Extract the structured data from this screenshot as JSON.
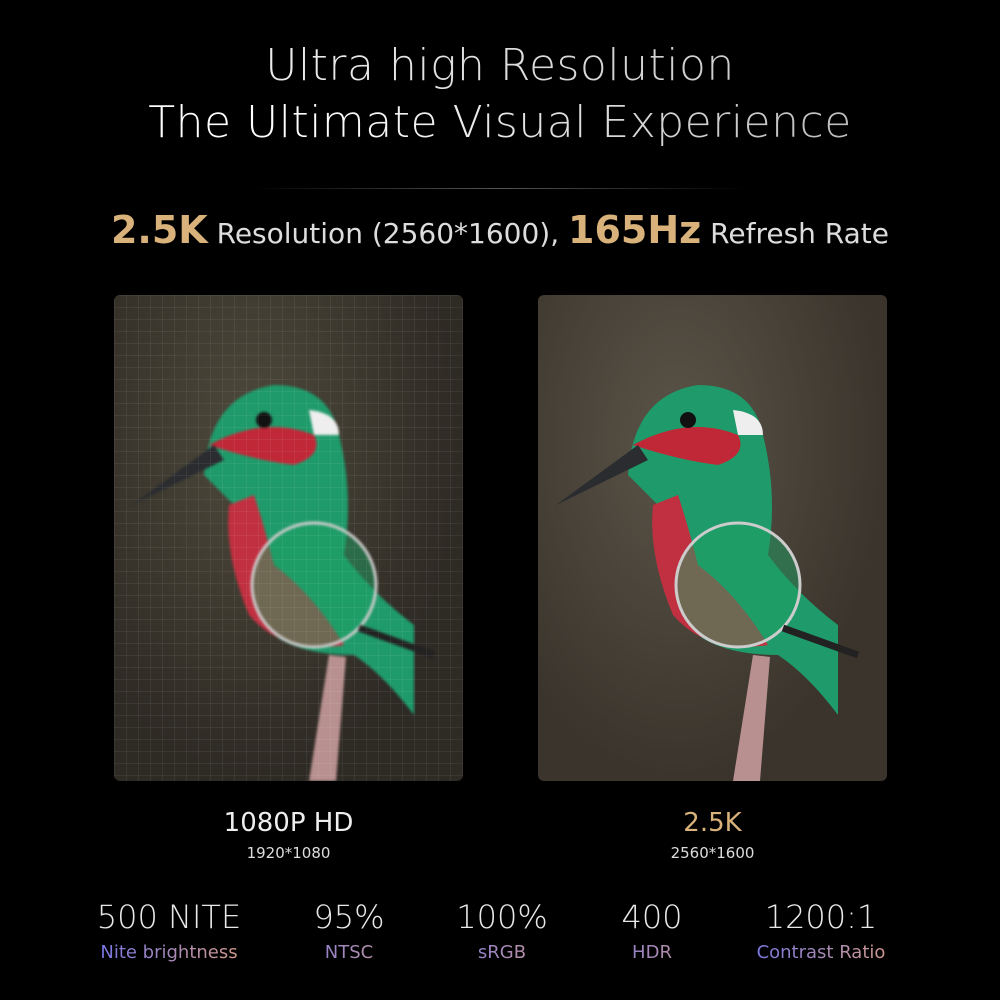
{
  "header": {
    "line1": "Ultra high Resolution",
    "line2": "The Ultimate Visual Experience"
  },
  "subtitle": {
    "highlight1": "2.5K",
    "text1": " Resolution (2560*1600), ",
    "highlight2": "165Hz",
    "text2": " Refresh Rate"
  },
  "comparison": [
    {
      "title": "1080P HD",
      "resolution": "1920*1080"
    },
    {
      "title": "2.5K",
      "resolution": "2560*1600",
      "title_color": "#d8b27a"
    }
  ],
  "stats": [
    {
      "value": "500 NITE",
      "label": "Nite brightness"
    },
    {
      "value": "95%",
      "label": "NTSC"
    },
    {
      "value": "100%",
      "label": "sRGB"
    },
    {
      "value": "400",
      "label": "HDR"
    },
    {
      "value": "1200:1",
      "label": "Contrast Ratio"
    }
  ],
  "colors": {
    "gold": "#d8b27a",
    "label_gradient_start": "#6a70f0",
    "label_gradient_end": "#e0a080"
  }
}
